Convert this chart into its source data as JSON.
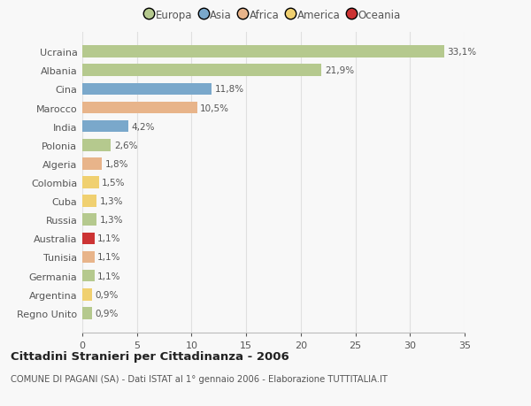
{
  "categories": [
    "Ucraina",
    "Albania",
    "Cina",
    "Marocco",
    "India",
    "Polonia",
    "Algeria",
    "Colombia",
    "Cuba",
    "Russia",
    "Australia",
    "Tunisia",
    "Germania",
    "Argentina",
    "Regno Unito"
  ],
  "values": [
    33.1,
    21.9,
    11.8,
    10.5,
    4.2,
    2.6,
    1.8,
    1.5,
    1.3,
    1.3,
    1.1,
    1.1,
    1.1,
    0.9,
    0.9
  ],
  "labels": [
    "33,1%",
    "21,9%",
    "11,8%",
    "10,5%",
    "4,2%",
    "2,6%",
    "1,8%",
    "1,5%",
    "1,3%",
    "1,3%",
    "1,1%",
    "1,1%",
    "1,1%",
    "0,9%",
    "0,9%"
  ],
  "colors": [
    "#b5c98e",
    "#b5c98e",
    "#7aa8cb",
    "#e8b48a",
    "#7aa8cb",
    "#b5c98e",
    "#e8b48a",
    "#f0d070",
    "#f0d070",
    "#b5c98e",
    "#cc3333",
    "#e8b48a",
    "#b5c98e",
    "#f0d070",
    "#b5c98e"
  ],
  "continent_colors": {
    "Europa": "#b5c98e",
    "Asia": "#7aa8cb",
    "Africa": "#e8b48a",
    "America": "#f0d070",
    "Oceania": "#cc3333"
  },
  "title": "Cittadini Stranieri per Cittadinanza - 2006",
  "subtitle": "COMUNE DI PAGANI (SA) - Dati ISTAT al 1° gennaio 2006 - Elaborazione TUTTITALIA.IT",
  "xlim": [
    0,
    35
  ],
  "xticks": [
    0,
    5,
    10,
    15,
    20,
    25,
    30,
    35
  ],
  "background_color": "#f8f8f8",
  "grid_color": "#e0e0e0"
}
